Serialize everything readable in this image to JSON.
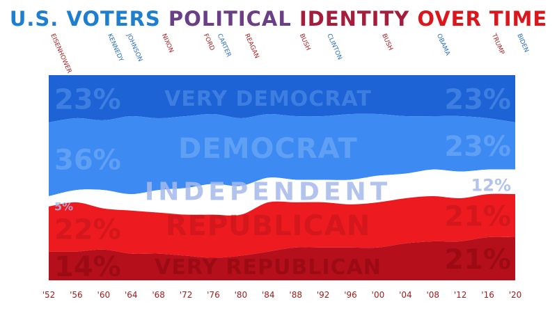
{
  "chart_data": {
    "type": "area",
    "title_parts": [
      {
        "text": "U.S. VOTERS ",
        "color": "#1e7fd0"
      },
      {
        "text": "POLITICAL ",
        "color": "#6a3f86"
      },
      {
        "text": "IDENTITY ",
        "color": "#a51d3c"
      },
      {
        "text": "OVER TIME",
        "color": "#d9171c"
      }
    ],
    "stacking": "100% stacked, top to bottom",
    "x": [
      1952,
      1956,
      1960,
      1964,
      1968,
      1972,
      1976,
      1980,
      1984,
      1988,
      1992,
      1996,
      2000,
      2004,
      2008,
      2012,
      2016,
      2020
    ],
    "x_tick_labels": [
      "'52",
      "'56",
      "'60",
      "'64",
      "'68",
      "'72",
      "'76",
      "'80",
      "'84",
      "'88",
      "'92",
      "'96",
      "'00",
      "'04",
      "'08",
      "'12",
      "'16",
      "'20"
    ],
    "series": [
      {
        "name": "VERY DEMOCRAT",
        "color": "#1d63d6",
        "values": [
          23,
          21,
          22,
          20,
          21,
          20,
          19,
          21,
          19,
          20,
          20,
          19,
          19,
          20,
          20,
          20,
          21,
          23
        ],
        "label_start": "23%",
        "label_end": "23%"
      },
      {
        "name": "DEMOCRAT",
        "color": "#3d8bf2",
        "values": [
          36,
          35,
          34,
          38,
          35,
          35,
          34,
          33,
          31,
          31,
          31,
          32,
          30,
          28,
          26,
          27,
          25,
          23
        ],
        "label_start": "36%",
        "label_end": "23%"
      },
      {
        "name": "INDEPENDENT",
        "color": "#ffffff",
        "values": [
          5,
          6,
          9,
          8,
          11,
          13,
          15,
          14,
          12,
          11,
          11,
          12,
          13,
          12,
          13,
          13,
          12,
          12
        ],
        "label_start": "5%",
        "label_end": "12%"
      },
      {
        "name": "REPUBLICAN",
        "color": "#ed1b1f",
        "values": [
          22,
          24,
          20,
          21,
          20,
          20,
          21,
          20,
          24,
          22,
          22,
          21,
          22,
          22,
          22,
          21,
          21,
          21
        ],
        "label_start": "22%",
        "label_end": "21%"
      },
      {
        "name": "VERY REPUBLICAN",
        "color": "#b50f1b",
        "values": [
          14,
          14,
          15,
          13,
          13,
          12,
          11,
          12,
          14,
          16,
          16,
          16,
          16,
          18,
          19,
          19,
          21,
          21
        ],
        "label_start": "14%",
        "label_end": "21%"
      }
    ],
    "presidents": [
      {
        "name": "EISENHOWER",
        "year": 1952.3,
        "party": "R"
      },
      {
        "name": "KENNEDY",
        "year": 1960.6,
        "party": "D"
      },
      {
        "name": "JOHNSON",
        "year": 1963.4,
        "party": "D"
      },
      {
        "name": "NIXON",
        "year": 1968.5,
        "party": "R"
      },
      {
        "name": "FORD",
        "year": 1974.6,
        "party": "R"
      },
      {
        "name": "CARTER",
        "year": 1976.6,
        "party": "D"
      },
      {
        "name": "REAGAN",
        "year": 1980.6,
        "party": "R"
      },
      {
        "name": "BUSH",
        "year": 1988.6,
        "party": "R"
      },
      {
        "name": "CLINTON",
        "year": 1992.6,
        "party": "D"
      },
      {
        "name": "BUSH",
        "year": 2000.6,
        "party": "R"
      },
      {
        "name": "OBAMA",
        "year": 2008.6,
        "party": "D"
      },
      {
        "name": "TRUMP",
        "year": 2016.6,
        "party": "R"
      },
      {
        "name": "BIDEN",
        "year": 2020.3,
        "party": "D"
      }
    ],
    "party_colors": {
      "D": "#2a6fc6",
      "R": "#a81e1e"
    },
    "tick_color": "#9c1a1a",
    "ylim": [
      0,
      100
    ],
    "grid": false,
    "legend": "none (labels inside areas)"
  }
}
